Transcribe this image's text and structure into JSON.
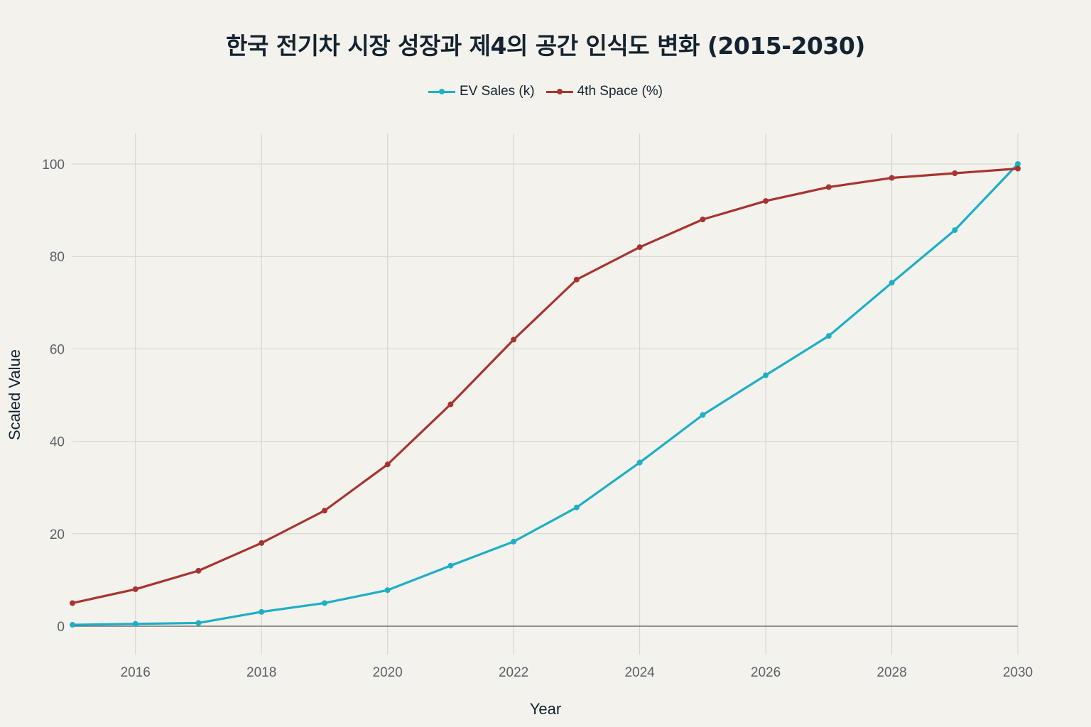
{
  "chart_data": {
    "type": "line",
    "title": "한국 전기차 시장 성장과 제4의 공간 인식도 변화 (2015-2030)",
    "xlabel": "Year",
    "ylabel": "Scaled Value",
    "x": [
      2015,
      2016,
      2017,
      2018,
      2019,
      2020,
      2021,
      2022,
      2023,
      2024,
      2025,
      2026,
      2027,
      2028,
      2029,
      2030
    ],
    "xlim": [
      2015,
      2030
    ],
    "ylim": [
      -5,
      106
    ],
    "x_ticks": [
      2016,
      2018,
      2020,
      2022,
      2024,
      2026,
      2028,
      2030
    ],
    "y_ticks": [
      0,
      20,
      40,
      60,
      80,
      100
    ],
    "grid": true,
    "legend_placement": "top-center",
    "series": [
      {
        "name": "EV Sales (k)",
        "color": "#1eafc5",
        "values": [
          0.3,
          0.5,
          0.7,
          3.1,
          5.0,
          7.8,
          13.1,
          18.3,
          25.7,
          35.4,
          45.7,
          54.3,
          62.8,
          74.3,
          85.7,
          100
        ]
      },
      {
        "name": "4th Space (%)",
        "color": "#a83431",
        "values": [
          5,
          8,
          12,
          18,
          25,
          35,
          48,
          62,
          75,
          82,
          88,
          92,
          95,
          97,
          98,
          99
        ]
      }
    ]
  }
}
